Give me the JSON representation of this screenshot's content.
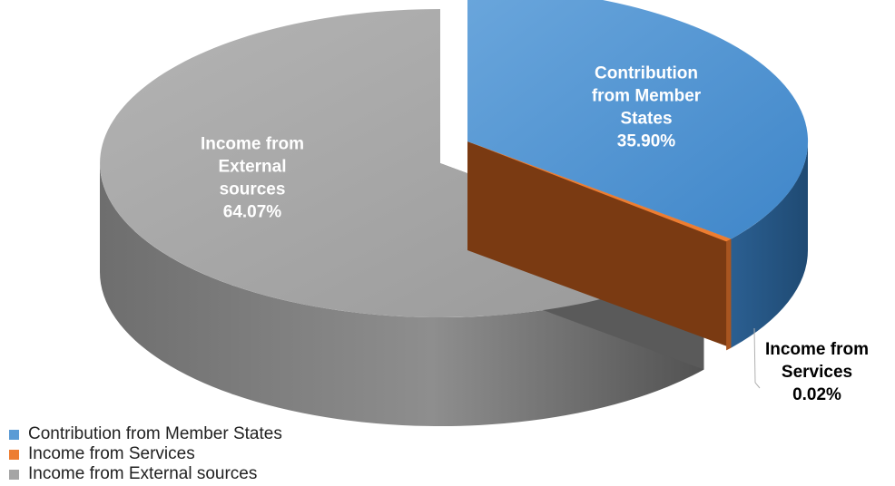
{
  "chart_data": {
    "type": "pie",
    "style": "3d-exploded",
    "categories": [
      "Contribution from Member States",
      "Income from Services",
      "Income from External sources"
    ],
    "values": [
      35.9,
      0.02,
      64.07
    ],
    "value_labels": [
      "35.90%",
      "0.02%",
      "64.07%"
    ],
    "slice_labels": [
      {
        "lines": [
          "Contribution",
          "from Member",
          "States",
          "35.90%"
        ],
        "color": "#ffffff"
      },
      {
        "lines": [
          "Income from",
          "Services",
          "0.02%"
        ],
        "color": "#000000"
      },
      {
        "lines": [
          "Income from",
          "External",
          "sources",
          "64.07%"
        ],
        "color": "#ffffff"
      }
    ],
    "colors": {
      "Contribution from Member States": "#5b9bd5",
      "Income from Services": "#ed7d31",
      "Income from External sources": "#a5a5a5"
    },
    "legend_position": "bottom-left"
  },
  "legend": {
    "items": [
      {
        "label": "Contribution from Member States",
        "color": "#5b9bd5"
      },
      {
        "label": "Income from Services",
        "color": "#ed7d31"
      },
      {
        "label": "Income from External sources",
        "color": "#a5a5a5"
      }
    ]
  }
}
